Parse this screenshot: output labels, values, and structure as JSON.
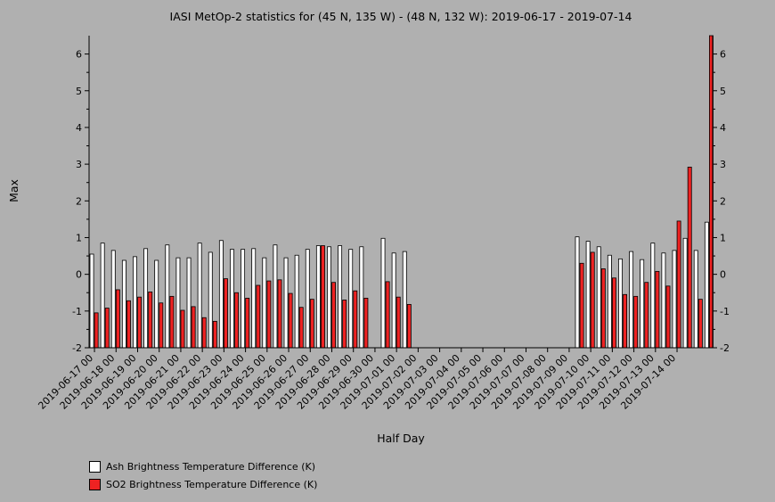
{
  "chart_data": {
    "type": "bar",
    "title": "IASI MetOp-2 statistics for (45 N, 135 W) - (48 N, 132 W): 2019-06-17 - 2019-07-14",
    "xlabel": "Half Day",
    "ylabel": "Max",
    "ylim": [
      -2,
      6.5
    ],
    "yticks": [
      -2,
      -1,
      0,
      1,
      2,
      3,
      4,
      5,
      6
    ],
    "grid": false,
    "legend_position": "bottom-left",
    "tick_labels": [
      "2019-06-17 00",
      "2019-06-18 00",
      "2019-06-19 00",
      "2019-06-20 00",
      "2019-06-21 00",
      "2019-06-22 00",
      "2019-06-23 00",
      "2019-06-24 00",
      "2019-06-25 00",
      "2019-06-26 00",
      "2019-06-27 00",
      "2019-06-28 00",
      "2019-06-29 00",
      "2019-06-30 00",
      "2019-07-01 00",
      "2019-07-02 00",
      "2019-07-03 00",
      "2019-07-04 00",
      "2019-07-05 00",
      "2019-07-06 00",
      "2019-07-07 00",
      "2019-07-08 00",
      "2019-07-09 00",
      "2019-07-10 00",
      "2019-07-11 00",
      "2019-07-12 00",
      "2019-07-13 00",
      "2019-07-14 00"
    ],
    "series": [
      {
        "name": "Ash Brightness Temperature Difference (K)",
        "color": "#ffffff",
        "values": [
          0.55,
          0.85,
          0.65,
          0.38,
          0.48,
          0.7,
          0.38,
          0.8,
          0.45,
          0.45,
          0.85,
          0.6,
          0.92,
          0.68,
          0.68,
          0.7,
          0.45,
          0.8,
          0.45,
          0.52,
          0.68,
          0.78,
          0.75,
          0.78,
          0.68,
          0.75,
          null,
          0.98,
          0.58,
          0.62,
          null,
          null,
          null,
          null,
          null,
          null,
          null,
          null,
          null,
          null,
          null,
          null,
          null,
          null,
          null,
          1.02,
          0.9,
          0.75,
          0.52,
          0.42,
          0.62,
          0.4,
          0.85,
          0.58,
          0.65,
          0.98,
          0.65,
          1.42
        ]
      },
      {
        "name": "SO2 Brightness Temperature Difference (K)",
        "color": "#ee2222",
        "values": [
          -1.05,
          -0.92,
          -0.42,
          -0.72,
          -0.62,
          -0.48,
          -0.78,
          -0.6,
          -0.98,
          -0.88,
          -1.18,
          -1.28,
          -0.12,
          -0.5,
          -0.65,
          -0.3,
          -0.18,
          -0.15,
          -0.52,
          -0.9,
          -0.68,
          0.78,
          -0.22,
          -0.7,
          -0.45,
          -0.65,
          null,
          -0.2,
          -0.62,
          -0.82,
          null,
          null,
          null,
          null,
          null,
          null,
          null,
          null,
          null,
          null,
          null,
          null,
          null,
          null,
          null,
          0.3,
          0.6,
          0.15,
          -0.1,
          -0.55,
          -0.6,
          -0.22,
          0.08,
          -0.32,
          1.45,
          2.92,
          -0.68,
          6.5
        ]
      }
    ]
  }
}
